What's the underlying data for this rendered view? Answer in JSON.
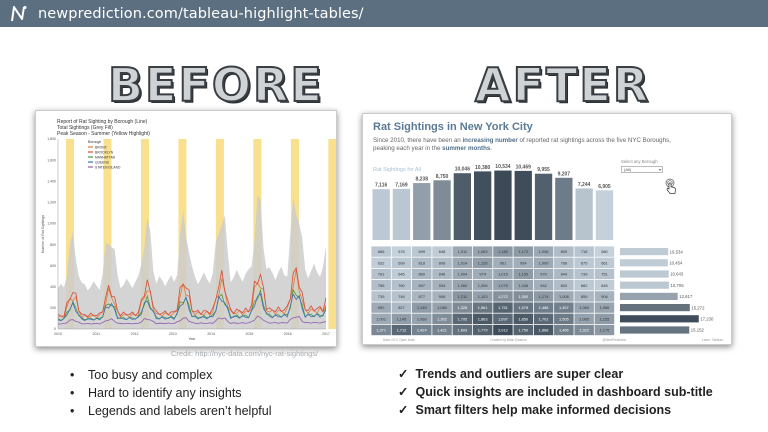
{
  "header": {
    "url": "newprediction.com/tableau-highlight-tables/",
    "logo_icon": "newprediction-logo-icon"
  },
  "headings": {
    "before": "BEFORE",
    "after": "AFTER"
  },
  "credit": "Credit: http://nyc-data.com/nyc-rat-sightings/",
  "before_bullets": [
    "Too busy and complex",
    "Hard to identify any insights",
    "Legends and labels aren’t helpful"
  ],
  "after_bullets": [
    "Trends and outliers are super clear",
    "Quick insights are included in dashboard sub-title",
    "Smart filters help make informed decisions"
  ],
  "before_chart": {
    "title_lines": [
      "Report of Rat Sighting by Borough (Line)",
      "Total Sightings (Grey Fill)",
      "Peak Season - Summer (Yellow Highlight)"
    ],
    "legend_title": "Borough",
    "legend": [
      {
        "name": "BRONX",
        "color": "#e07b39"
      },
      {
        "name": "BROOKLYN",
        "color": "#d64b3a"
      },
      {
        "name": "MANHATTAN",
        "color": "#4a9a3c"
      },
      {
        "name": "QUEENS",
        "color": "#3b6fb0"
      },
      {
        "name": "STATEN ISLAND",
        "color": "#8e5bb0"
      }
    ],
    "y_ticks": [
      "1,800",
      "1,600",
      "1,400",
      "1,200",
      "1,000",
      "800",
      "600",
      "400",
      "200",
      "0"
    ],
    "x_ticks": [
      "2010",
      "2011",
      "2012",
      "2013",
      "2014",
      "2015",
      "2016",
      "2017"
    ],
    "ylabel": "Number of Rat Sightings",
    "xlabel": "Year"
  },
  "after_dashboard": {
    "title": "Rat Sightings in New York City",
    "subtitle_parts": [
      {
        "text": "Since 2010, there have been an ",
        "bold": false
      },
      {
        "text": "increasing number",
        "bold": true
      },
      {
        "text": " of reported rat sightings across the five NYC Boroughs, peaking each year in the ",
        "bold": false
      },
      {
        "text": "summer months",
        "bold": true
      },
      {
        "text": ".",
        "bold": false
      }
    ],
    "chart_label": "Rat Sightings for All",
    "select_label": "Select any Borough",
    "select_value": "(All)",
    "cursor_icon": "pointer-hand-icon",
    "footer": [
      "Data: NYC Open Data",
      "Created by Brian Ewanus",
      "@NewPrediction",
      "Learn: Tableau"
    ]
  },
  "chart_data": {
    "type": "bar",
    "title": "Rat Sightings for All",
    "values": [
      7116,
      7169,
      8238,
      8750,
      10046,
      10380,
      10534,
      10469,
      9955,
      9207,
      7244,
      6905
    ],
    "value_labels": [
      "7,116",
      "7,169",
      "8,238",
      "8,750",
      "10,046",
      "10,380",
      "10,534",
      "10,469",
      "9,955",
      "9,207",
      "7,244",
      "6,905"
    ],
    "year_totals": [
      10534,
      10454,
      10643,
      10706,
      12617,
      15272,
      17230,
      15152
    ],
    "year_total_labels": [
      "10,534",
      "10,454",
      "10,643",
      "10,706",
      "12,617",
      "15,272",
      "17,230",
      "15,152"
    ],
    "heat_table": [
      [
        "686",
        "578",
        "699",
        "648",
        "1,011",
        "1,063",
        "1,185",
        "1,172",
        "1,006",
        "809",
        "718",
        "580"
      ],
      [
        "632",
        "699",
        "818",
        "808",
        "1,014",
        "1,126",
        "961",
        "954",
        "1,000",
        "768",
        "675",
        "661"
      ],
      [
        "761",
        "645",
        "860",
        "846",
        "1,004",
        "974",
        "1,015",
        "1,155",
        "970",
        "844",
        "739",
        "751"
      ],
      [
        "786",
        "760",
        "897",
        "934",
        "1,060",
        "1,006",
        "1,075",
        "1,046",
        "942",
        "803",
        "682",
        "645"
      ],
      [
        "739",
        "746",
        "877",
        "906",
        "1,211",
        "1,103",
        "1,272",
        "1,300",
        "1,174",
        "1,008",
        "859",
        "904"
      ],
      [
        "990",
        "827",
        "1,146",
        "1,080",
        "1,328",
        "1,561",
        "1,751",
        "1,578",
        "1,488",
        "1,457",
        "1,060",
        "1,066"
      ],
      [
        "1,001",
        "1,145",
        "1,066",
        "1,302",
        "1,705",
        "1,863",
        "1,697",
        "1,850",
        "1,701",
        "1,505",
        "1,085",
        "1,155"
      ],
      [
        "1,371",
        "1,712",
        "1,424",
        "1,421",
        "1,603",
        "1,779",
        "2,012",
        "1,750",
        "1,868",
        "1,466",
        "1,322",
        "1,175"
      ]
    ]
  },
  "colors": {
    "topbar": "#5b6f80",
    "title_blue": "#5b7a96",
    "peak_yellow": "#f6d66a",
    "total_grey": "#cccccc"
  }
}
